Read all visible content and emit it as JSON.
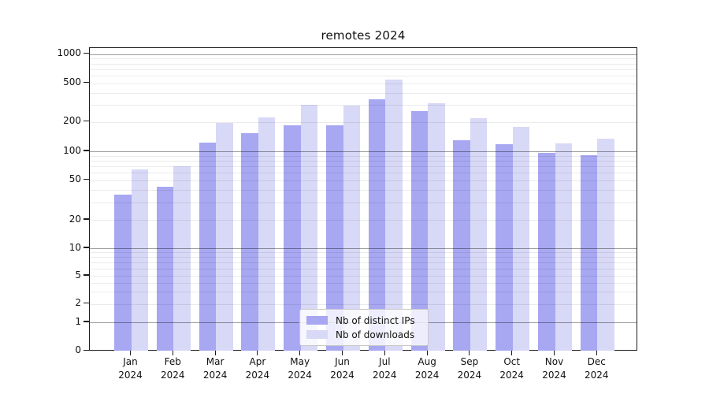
{
  "title": "remotes 2024",
  "colors": {
    "series_dark": "#a7a7f2",
    "series_light": "#d8d8f7",
    "major_grid": "rgba(0,0,0,0.38)",
    "minor_grid": "rgba(0,0,0,0.08)",
    "spine": "#1a1a1a",
    "background": "#ffffff"
  },
  "legend": {
    "items": [
      {
        "label": "Nb of distinct IPs",
        "color": "#a7a7f2"
      },
      {
        "label": "Nb of downloads",
        "color": "#d8d8f7"
      }
    ]
  },
  "chart_data": {
    "type": "bar",
    "title": "remotes 2024",
    "categories": [
      "Jan 2024",
      "Feb 2024",
      "Mar 2024",
      "Apr 2024",
      "May 2024",
      "Jun 2024",
      "Jul 2024",
      "Aug 2024",
      "Sep 2024",
      "Oct 2024",
      "Nov 2024",
      "Dec 2024"
    ],
    "x_months": [
      "Jan",
      "Feb",
      "Mar",
      "Apr",
      "May",
      "Jun",
      "Jul",
      "Aug",
      "Sep",
      "Oct",
      "Nov",
      "Dec"
    ],
    "x_year": "2024",
    "series": [
      {
        "name": "Nb of distinct IPs",
        "color": "#a7a7f2",
        "values": [
          36,
          43,
          123,
          153,
          185,
          185,
          346,
          258,
          131,
          119,
          96,
          91
        ]
      },
      {
        "name": "Nb of downloads",
        "color": "#d8d8f7",
        "values": [
          65,
          70,
          196,
          223,
          300,
          296,
          549,
          315,
          219,
          178,
          121,
          135
        ]
      }
    ],
    "xlabel": "",
    "ylabel": "",
    "y_axis": {
      "scale": "symlog",
      "tick_values": [
        0,
        1,
        2,
        5,
        10,
        20,
        50,
        100,
        200,
        500,
        1000
      ],
      "range": [
        0,
        1150
      ]
    },
    "grid": "horizontal",
    "legend_position": "lower center"
  }
}
